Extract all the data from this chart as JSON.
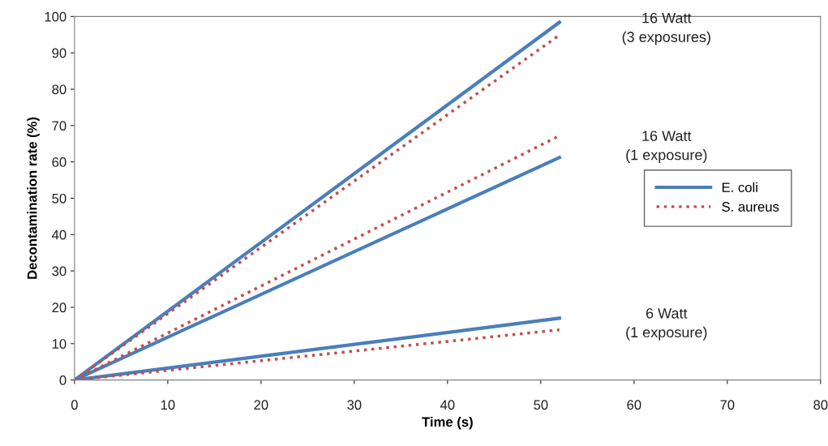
{
  "chart_data": {
    "type": "line",
    "xlabel": "Time (s)",
    "ylabel": "Decontamination rate (%)",
    "x": [
      0,
      52
    ],
    "series": [
      {
        "name": "E. coli",
        "color": "#4a7ebb",
        "line_style": "solid",
        "values": [
          0,
          98.4
        ]
      },
      {
        "name": "S. aureus",
        "color": "#c0504d",
        "line_style": "dotted",
        "values": [
          0,
          94.9
        ]
      },
      {
        "color": "#4a7ebb",
        "line_style": "solid",
        "values": [
          0,
          61.2
        ]
      },
      {
        "color": "#c0504d",
        "line_style": "dotted",
        "values": [
          0,
          67.2
        ]
      },
      {
        "color": "#4a7ebb",
        "line_style": "solid",
        "values": [
          0,
          17.0
        ]
      },
      {
        "color": "#c0504d",
        "line_style": "dotted",
        "values": [
          0,
          13.8
        ]
      }
    ],
    "annotations": [
      "16 Watt\n(3 exposures)",
      "16 Watt\n(1 exposure)",
      "6 Watt\n(1 exposure)"
    ],
    "xlim": [
      0,
      80
    ],
    "xticks": [
      0,
      10,
      20,
      30,
      40,
      50,
      60,
      70,
      80
    ],
    "ylim": [
      0,
      100
    ],
    "yticks": [
      0,
      10,
      20,
      30,
      40,
      50,
      60,
      70,
      80,
      90,
      100
    ],
    "grid": false,
    "legend": "right",
    "marker": "none"
  }
}
